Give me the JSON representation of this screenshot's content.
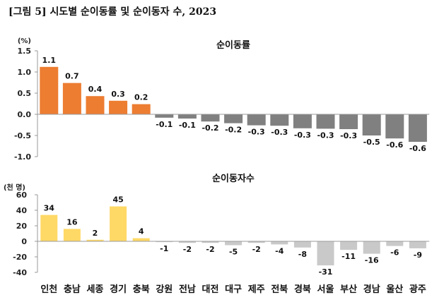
{
  "figure": {
    "title": "[그림 5] 시도별 순이동률 및 순이동자 수, 2023"
  },
  "chart_data": [
    {
      "type": "bar",
      "title": "순이동률",
      "unit": "(%)",
      "categories": [
        "인천",
        "충남",
        "세종",
        "경기",
        "충북",
        "강원",
        "전남",
        "대전",
        "대구",
        "제주",
        "전북",
        "경북",
        "서울",
        "부산",
        "경남",
        "울산",
        "광주"
      ],
      "values": [
        1.1,
        0.7,
        0.4,
        0.3,
        0.2,
        -0.1,
        -0.1,
        -0.2,
        -0.2,
        -0.3,
        -0.3,
        -0.3,
        -0.3,
        -0.3,
        -0.5,
        -0.6,
        -0.6
      ],
      "bar_values": [
        1.12,
        0.74,
        0.43,
        0.32,
        0.24,
        -0.08,
        -0.1,
        -0.17,
        -0.21,
        -0.26,
        -0.27,
        -0.33,
        -0.34,
        -0.35,
        -0.5,
        -0.57,
        -0.65
      ],
      "ylim": [
        -1.0,
        1.5
      ],
      "yticks": [
        "1.5",
        "1.0",
        "0.5",
        "0.0",
        "-0.5",
        "-1.0"
      ],
      "ytick_values": [
        1.5,
        1.0,
        0.5,
        0.0,
        -0.5,
        -1.0
      ],
      "colors": {
        "positive": "#ED7D31",
        "negative": "#808080"
      }
    },
    {
      "type": "bar",
      "title": "순이동자수",
      "unit": "(천 명)",
      "categories": [
        "인천",
        "충남",
        "세종",
        "경기",
        "충북",
        "강원",
        "전남",
        "대전",
        "대구",
        "제주",
        "전북",
        "경북",
        "서울",
        "부산",
        "경남",
        "울산",
        "광주"
      ],
      "values": [
        34,
        16,
        2,
        45,
        4,
        -1,
        -2,
        -2,
        -5,
        -2,
        -4,
        -8,
        -31,
        -11,
        -16,
        -6,
        -9
      ],
      "ylim": [
        -40,
        60
      ],
      "yticks": [
        "60",
        "40",
        "20",
        "0",
        "-20",
        "-40"
      ],
      "ytick_values": [
        60,
        40,
        20,
        0,
        -20,
        -40
      ],
      "colors": {
        "positive": "#FFD966",
        "negative": "#C9C9C9"
      }
    }
  ]
}
